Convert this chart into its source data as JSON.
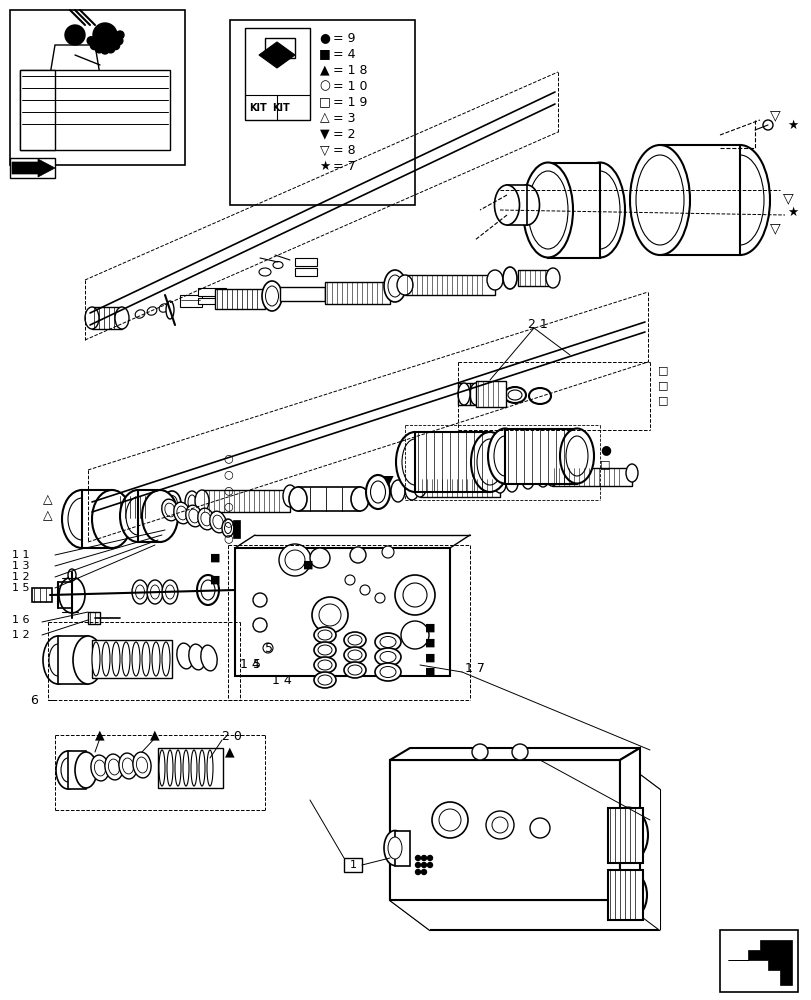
{
  "bg_color": "#ffffff",
  "line_color": "#000000",
  "legend_entries": [
    {
      "symbol": "●",
      "text": "= 9"
    },
    {
      "symbol": "■",
      "text": "= 4"
    },
    {
      "symbol": "▲",
      "text": "= 1 8"
    },
    {
      "symbol": "○",
      "text": "= 1 0"
    },
    {
      "symbol": "□",
      "text": "= 1 9"
    },
    {
      "symbol": "△",
      "text": "= 3"
    },
    {
      "symbol": "▼",
      "text": "= 2"
    },
    {
      "symbol": "▽",
      "text": "= 8"
    },
    {
      "symbol": "★",
      "text": "= 7"
    }
  ]
}
